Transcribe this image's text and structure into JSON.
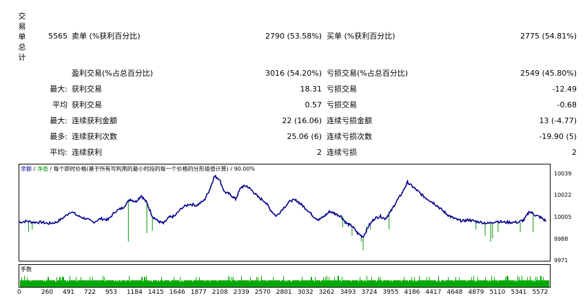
{
  "side_label": "交易单总计",
  "stats": {
    "total_trades": "5565",
    "short_label": "卖单 (%获利百分比)",
    "short_value": "2790 (53.58%)",
    "long_label": "买单 (%获利百分比)",
    "long_value": "2775 (54.81%)",
    "profit_trades_label": "盈利交易(%占总百分比)",
    "profit_trades_value": "3016 (54.20%)",
    "loss_trades_label": "亏损交易(%占总百分比)",
    "loss_trades_value": "2549 (45.80%)",
    "largest_prefix": "最大:",
    "largest_profit_label": "获利交易",
    "largest_profit_value": "18.31",
    "largest_loss_label": "亏损交易",
    "largest_loss_value": "-12.49",
    "average_prefix": "平均",
    "average_profit_label": "获利交易",
    "average_profit_value": "0.57",
    "average_loss_label": "亏损交易",
    "average_loss_value": "-0.68",
    "max_consec_prefix": "最大:",
    "max_consec_wins_label": "连续获利金额",
    "max_consec_wins_value": "22 (16.06)",
    "max_consec_losses_label": "连续亏损金额",
    "max_consec_losses_value": "13 (-4.77)",
    "max_consec_profit_prefix": "最多:",
    "max_consec_profit_label": "连续获利次数",
    "max_consec_profit_value": "25.06 (6)",
    "max_consec_loss_label": "连续亏损次数",
    "max_consec_loss_value": "-19.90 (5)",
    "avg_consec_prefix": "平均:",
    "avg_consec_wins_label": "连续获利",
    "avg_consec_wins_value": "2",
    "avg_consec_losses_label": "连续亏损",
    "avg_consec_losses_value": "2"
  },
  "chart_legend": {
    "balance": "余额",
    "sep1": " / ",
    "equity": "净值",
    "rest": " / 每个即时价格(基于所有可利用的最小时段的每一个价格的分形插值计算) / 90.00%"
  },
  "volume_title": "手数",
  "colors": {
    "balance": "#00008B",
    "equity": "#009900",
    "volume": "#00AA00"
  },
  "chart_data": {
    "type": "line",
    "y_ticks": [
      "10039",
      "10022",
      "10005",
      "9988",
      "9971"
    ],
    "x_ticks": [
      "0",
      "260",
      "491",
      "722",
      "953",
      "1184",
      "1415",
      "1646",
      "1877",
      "2108",
      "2339",
      "2570",
      "2801",
      "3032",
      "3262",
      "3493",
      "3724",
      "3955",
      "4186",
      "4417",
      "4648",
      "4879",
      "5110",
      "5341",
      "5572"
    ],
    "ylim": [
      9971,
      10039
    ],
    "xlim": [
      0,
      5740
    ],
    "balance": [
      [
        0,
        10001
      ],
      [
        80,
        10002
      ],
      [
        160,
        10001
      ],
      [
        240,
        10001
      ],
      [
        320,
        10000
      ],
      [
        400,
        10001
      ],
      [
        480,
        10005
      ],
      [
        560,
        10010
      ],
      [
        640,
        10006
      ],
      [
        720,
        10004
      ],
      [
        800,
        10001
      ],
      [
        880,
        10004
      ],
      [
        960,
        10003
      ],
      [
        1040,
        10010
      ],
      [
        1120,
        10013
      ],
      [
        1200,
        10020
      ],
      [
        1260,
        10018
      ],
      [
        1320,
        10023
      ],
      [
        1380,
        10017
      ],
      [
        1440,
        10006
      ],
      [
        1500,
        10002
      ],
      [
        1560,
        10000
      ],
      [
        1620,
        10005
      ],
      [
        1680,
        10006
      ],
      [
        1760,
        10013
      ],
      [
        1840,
        10016
      ],
      [
        1920,
        10015
      ],
      [
        2000,
        10019
      ],
      [
        2060,
        10028
      ],
      [
        2110,
        10039
      ],
      [
        2160,
        10037
      ],
      [
        2220,
        10026
      ],
      [
        2280,
        10024
      ],
      [
        2340,
        10020
      ],
      [
        2400,
        10030
      ],
      [
        2460,
        10031
      ],
      [
        2520,
        10027
      ],
      [
        2580,
        10022
      ],
      [
        2660,
        10018
      ],
      [
        2720,
        10011
      ],
      [
        2780,
        10006
      ],
      [
        2860,
        10013
      ],
      [
        2940,
        10019
      ],
      [
        3000,
        10019
      ],
      [
        3060,
        10015
      ],
      [
        3120,
        10011
      ],
      [
        3180,
        10006
      ],
      [
        3240,
        10003
      ],
      [
        3300,
        10006
      ],
      [
        3360,
        10010
      ],
      [
        3420,
        10008
      ],
      [
        3480,
        10006
      ],
      [
        3540,
        10000
      ],
      [
        3600,
        9998
      ],
      [
        3660,
        9992
      ],
      [
        3720,
        9989
      ],
      [
        3780,
        9998
      ],
      [
        3840,
        10004
      ],
      [
        3900,
        10006
      ],
      [
        3960,
        10004
      ],
      [
        4020,
        10010
      ],
      [
        4080,
        10018
      ],
      [
        4140,
        10025
      ],
      [
        4200,
        10034
      ],
      [
        4260,
        10030
      ],
      [
        4320,
        10026
      ],
      [
        4380,
        10022
      ],
      [
        4440,
        10019
      ],
      [
        4500,
        10016
      ],
      [
        4560,
        10012
      ],
      [
        4620,
        10008
      ],
      [
        4680,
        10005
      ],
      [
        4740,
        10003
      ],
      [
        4800,
        10002
      ],
      [
        4860,
        10003
      ],
      [
        4920,
        10002
      ],
      [
        5000,
        10001
      ],
      [
        5080,
        10000
      ],
      [
        5160,
        10002
      ],
      [
        5240,
        10001
      ],
      [
        5320,
        10001
      ],
      [
        5400,
        10001
      ],
      [
        5460,
        10003
      ],
      [
        5520,
        10010
      ],
      [
        5580,
        10007
      ],
      [
        5640,
        10005
      ],
      [
        5700,
        10002
      ]
    ],
    "equity_drops": [
      [
        100,
        9993
      ],
      [
        140,
        9995
      ],
      [
        1180,
        9985
      ],
      [
        1380,
        9992
      ],
      [
        1440,
        9994
      ],
      [
        3500,
        9997
      ],
      [
        3600,
        9990
      ],
      [
        3700,
        9985
      ],
      [
        3720,
        9978
      ],
      [
        3760,
        9993
      ],
      [
        3800,
        9995
      ],
      [
        4000,
        9995
      ],
      [
        4940,
        9995
      ],
      [
        5040,
        9990
      ],
      [
        5100,
        9985
      ],
      [
        5120,
        9988
      ],
      [
        5180,
        9993
      ],
      [
        5420,
        9993
      ],
      [
        5560,
        9993
      ]
    ],
    "volume": {
      "base_lots": 0.6,
      "spikes": [
        0.9,
        1.0
      ]
    }
  }
}
